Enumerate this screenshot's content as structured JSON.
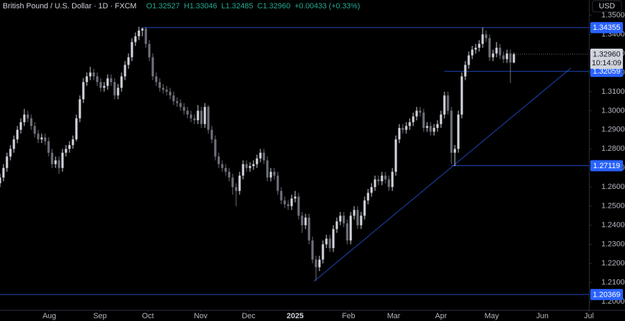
{
  "chart_data": {
    "type": "candlestick",
    "title": "British Pound / U.S. Dollar · 1D · FXCM",
    "readout": [
      "O1.32527",
      "H1.33046",
      "L1.32485",
      "C1.32960",
      "+0.00433 (+0.33%)"
    ],
    "currency": "USD",
    "ohlc": [
      [
        1.262,
        1.267,
        1.26,
        1.265
      ],
      [
        1.265,
        1.272,
        1.263,
        1.27
      ],
      [
        1.27,
        1.278,
        1.268,
        1.276
      ],
      [
        1.276,
        1.282,
        1.274,
        1.28
      ],
      [
        1.28,
        1.287,
        1.278,
        1.285
      ],
      [
        1.285,
        1.292,
        1.283,
        1.29
      ],
      [
        1.29,
        1.296,
        1.288,
        1.294
      ],
      [
        1.294,
        1.301,
        1.292,
        1.298
      ],
      [
        1.298,
        1.3,
        1.294,
        1.296
      ],
      [
        1.296,
        1.298,
        1.29,
        1.292
      ],
      [
        1.292,
        1.294,
        1.286,
        1.288
      ],
      [
        1.288,
        1.29,
        1.283,
        1.285
      ],
      [
        1.285,
        1.288,
        1.283,
        1.286
      ],
      [
        1.286,
        1.288,
        1.282,
        1.284
      ],
      [
        1.284,
        1.286,
        1.276,
        1.278
      ],
      [
        1.278,
        1.28,
        1.27,
        1.272
      ],
      [
        1.272,
        1.276,
        1.27,
        1.274
      ],
      [
        1.274,
        1.276,
        1.267,
        1.27
      ],
      [
        1.27,
        1.28,
        1.268,
        1.278
      ],
      [
        1.278,
        1.282,
        1.276,
        1.28
      ],
      [
        1.28,
        1.284,
        1.278,
        1.282
      ],
      [
        1.282,
        1.287,
        1.28,
        1.285
      ],
      [
        1.285,
        1.298,
        1.284,
        1.296
      ],
      [
        1.296,
        1.308,
        1.294,
        1.306
      ],
      [
        1.306,
        1.317,
        1.304,
        1.315
      ],
      [
        1.315,
        1.32,
        1.313,
        1.318
      ],
      [
        1.318,
        1.323,
        1.316,
        1.32
      ],
      [
        1.32,
        1.322,
        1.316,
        1.318
      ],
      [
        1.318,
        1.32,
        1.313,
        1.315
      ],
      [
        1.315,
        1.317,
        1.31,
        1.312
      ],
      [
        1.312,
        1.315,
        1.31,
        1.313
      ],
      [
        1.313,
        1.319,
        1.311,
        1.317
      ],
      [
        1.317,
        1.319,
        1.313,
        1.315
      ],
      [
        1.315,
        1.317,
        1.306,
        1.308
      ],
      [
        1.308,
        1.314,
        1.306,
        1.312
      ],
      [
        1.312,
        1.32,
        1.31,
        1.318
      ],
      [
        1.318,
        1.326,
        1.316,
        1.324
      ],
      [
        1.324,
        1.33,
        1.322,
        1.328
      ],
      [
        1.328,
        1.338,
        1.326,
        1.336
      ],
      [
        1.336,
        1.341,
        1.334,
        1.339
      ],
      [
        1.339,
        1.344,
        1.337,
        1.342
      ],
      [
        1.342,
        1.3436,
        1.339,
        1.343
      ],
      [
        1.343,
        1.344,
        1.333,
        1.335
      ],
      [
        1.335,
        1.337,
        1.326,
        1.328
      ],
      [
        1.328,
        1.33,
        1.316,
        1.318
      ],
      [
        1.318,
        1.32,
        1.313,
        1.315
      ],
      [
        1.315,
        1.317,
        1.31,
        1.312
      ],
      [
        1.312,
        1.314,
        1.309,
        1.311
      ],
      [
        1.311,
        1.313,
        1.308,
        1.31
      ],
      [
        1.31,
        1.312,
        1.306,
        1.308
      ],
      [
        1.308,
        1.31,
        1.303,
        1.305
      ],
      [
        1.305,
        1.307,
        1.302,
        1.304
      ],
      [
        1.304,
        1.306,
        1.3,
        1.302
      ],
      [
        1.302,
        1.304,
        1.298,
        1.3
      ],
      [
        1.3,
        1.302,
        1.296,
        1.298
      ],
      [
        1.298,
        1.3,
        1.294,
        1.296
      ],
      [
        1.296,
        1.298,
        1.293,
        1.295
      ],
      [
        1.295,
        1.303,
        1.293,
        1.3
      ],
      [
        1.3,
        1.302,
        1.291,
        1.293
      ],
      [
        1.293,
        1.304,
        1.291,
        1.302
      ],
      [
        1.302,
        1.303,
        1.288,
        1.29
      ],
      [
        1.29,
        1.292,
        1.283,
        1.285
      ],
      [
        1.285,
        1.287,
        1.274,
        1.276
      ],
      [
        1.276,
        1.278,
        1.27,
        1.272
      ],
      [
        1.272,
        1.274,
        1.268,
        1.27
      ],
      [
        1.27,
        1.272,
        1.266,
        1.268
      ],
      [
        1.268,
        1.27,
        1.263,
        1.265
      ],
      [
        1.265,
        1.267,
        1.256,
        1.26
      ],
      [
        1.26,
        1.262,
        1.25,
        1.258
      ],
      [
        1.258,
        1.268,
        1.256,
        1.266
      ],
      [
        1.266,
        1.274,
        1.264,
        1.272
      ],
      [
        1.272,
        1.274,
        1.268,
        1.27
      ],
      [
        1.27,
        1.273,
        1.268,
        1.271
      ],
      [
        1.271,
        1.274,
        1.269,
        1.272
      ],
      [
        1.272,
        1.277,
        1.27,
        1.275
      ],
      [
        1.275,
        1.28,
        1.273,
        1.278
      ],
      [
        1.278,
        1.28,
        1.272,
        1.274
      ],
      [
        1.274,
        1.276,
        1.263,
        1.265
      ],
      [
        1.265,
        1.27,
        1.263,
        1.268
      ],
      [
        1.268,
        1.27,
        1.264,
        1.266
      ],
      [
        1.266,
        1.268,
        1.256,
        1.258
      ],
      [
        1.258,
        1.26,
        1.251,
        1.253
      ],
      [
        1.253,
        1.255,
        1.249,
        1.251
      ],
      [
        1.251,
        1.253,
        1.248,
        1.25
      ],
      [
        1.25,
        1.256,
        1.248,
        1.254
      ],
      [
        1.254,
        1.258,
        1.252,
        1.255
      ],
      [
        1.255,
        1.257,
        1.243,
        1.245
      ],
      [
        1.245,
        1.247,
        1.236,
        1.24
      ],
      [
        1.24,
        1.246,
        1.238,
        1.244
      ],
      [
        1.244,
        1.246,
        1.23,
        1.232
      ],
      [
        1.232,
        1.234,
        1.22,
        1.222
      ],
      [
        1.222,
        1.224,
        1.211,
        1.218
      ],
      [
        1.218,
        1.224,
        1.216,
        1.222
      ],
      [
        1.222,
        1.232,
        1.22,
        1.23
      ],
      [
        1.23,
        1.235,
        1.228,
        1.233
      ],
      [
        1.233,
        1.235,
        1.226,
        1.228
      ],
      [
        1.228,
        1.24,
        1.226,
        1.238
      ],
      [
        1.238,
        1.244,
        1.236,
        1.242
      ],
      [
        1.242,
        1.247,
        1.24,
        1.245
      ],
      [
        1.245,
        1.247,
        1.239,
        1.241
      ],
      [
        1.241,
        1.243,
        1.23,
        1.232
      ],
      [
        1.232,
        1.247,
        1.23,
        1.245
      ],
      [
        1.245,
        1.25,
        1.243,
        1.248
      ],
      [
        1.248,
        1.25,
        1.238,
        1.24
      ],
      [
        1.24,
        1.247,
        1.238,
        1.245
      ],
      [
        1.245,
        1.255,
        1.243,
        1.253
      ],
      [
        1.253,
        1.259,
        1.251,
        1.257
      ],
      [
        1.257,
        1.262,
        1.255,
        1.26
      ],
      [
        1.26,
        1.266,
        1.258,
        1.264
      ],
      [
        1.264,
        1.266,
        1.261,
        1.263
      ],
      [
        1.263,
        1.268,
        1.261,
        1.266
      ],
      [
        1.266,
        1.268,
        1.262,
        1.264
      ],
      [
        1.264,
        1.266,
        1.258,
        1.26
      ],
      [
        1.26,
        1.27,
        1.258,
        1.268
      ],
      [
        1.268,
        1.287,
        1.266,
        1.285
      ],
      [
        1.285,
        1.293,
        1.283,
        1.291
      ],
      [
        1.291,
        1.293,
        1.288,
        1.29
      ],
      [
        1.29,
        1.294,
        1.288,
        1.292
      ],
      [
        1.292,
        1.296,
        1.29,
        1.294
      ],
      [
        1.294,
        1.299,
        1.292,
        1.297
      ],
      [
        1.297,
        1.302,
        1.295,
        1.3
      ],
      [
        1.3,
        1.302,
        1.297,
        1.299
      ],
      [
        1.299,
        1.301,
        1.289,
        1.291
      ],
      [
        1.291,
        1.294,
        1.289,
        1.292
      ],
      [
        1.292,
        1.294,
        1.287,
        1.289
      ],
      [
        1.289,
        1.293,
        1.287,
        1.291
      ],
      [
        1.291,
        1.295,
        1.289,
        1.293
      ],
      [
        1.293,
        1.3,
        1.291,
        1.298
      ],
      [
        1.298,
        1.31,
        1.296,
        1.308
      ],
      [
        1.308,
        1.31,
        1.298,
        1.3
      ],
      [
        1.3,
        1.302,
        1.272,
        1.278
      ],
      [
        1.278,
        1.282,
        1.271,
        1.28
      ],
      [
        1.28,
        1.3,
        1.278,
        1.298
      ],
      [
        1.298,
        1.32,
        1.296,
        1.318
      ],
      [
        1.318,
        1.326,
        1.316,
        1.324
      ],
      [
        1.324,
        1.331,
        1.322,
        1.329
      ],
      [
        1.329,
        1.334,
        1.327,
        1.332
      ],
      [
        1.332,
        1.335,
        1.33,
        1.333
      ],
      [
        1.333,
        1.337,
        1.331,
        1.335
      ],
      [
        1.335,
        1.3436,
        1.333,
        1.34
      ],
      [
        1.34,
        1.342,
        1.336,
        1.338
      ],
      [
        1.338,
        1.34,
        1.326,
        1.328
      ],
      [
        1.328,
        1.332,
        1.326,
        1.33
      ],
      [
        1.33,
        1.336,
        1.328,
        1.333
      ],
      [
        1.333,
        1.335,
        1.327,
        1.329
      ],
      [
        1.329,
        1.331,
        1.325,
        1.327
      ],
      [
        1.327,
        1.332,
        1.325,
        1.33
      ],
      [
        1.33,
        1.332,
        1.3145,
        1.32527
      ],
      [
        1.32527,
        1.33046,
        1.32485,
        1.3296
      ]
    ],
    "xlim": [
      0,
      169.6
    ],
    "xticks": [
      {
        "value": 14.2,
        "label": "Aug"
      },
      {
        "value": 28.8,
        "label": "Sep"
      },
      {
        "value": 42.6,
        "label": "Oct"
      },
      {
        "value": 57.8,
        "label": "Nov"
      },
      {
        "value": 71.6,
        "label": "Dec"
      },
      {
        "value": 85,
        "label": "2025"
      },
      {
        "value": 100.4,
        "label": "Feb"
      },
      {
        "value": 113.4,
        "label": "Mar"
      },
      {
        "value": 127,
        "label": "Apr"
      },
      {
        "value": 141.6,
        "label": "May"
      },
      {
        "value": 156.2,
        "label": "Jun"
      },
      {
        "value": 169.6,
        "label": "Jul"
      }
    ],
    "ylim": [
      1.19565,
      1.35801
    ],
    "yticks": [
      {
        "value": 1.35,
        "label": "1.35000"
      },
      {
        "value": 1.34,
        "label": "1.34000"
      },
      {
        "value": 1.33,
        "label": "1.33000"
      },
      {
        "value": 1.32,
        "label": "1.32000"
      },
      {
        "value": 1.31,
        "label": "1.31000"
      },
      {
        "value": 1.3,
        "label": "1.30000"
      },
      {
        "value": 1.29,
        "label": "1.29000"
      },
      {
        "value": 1.28,
        "label": "1.28000"
      },
      {
        "value": 1.27,
        "label": "1.27000"
      },
      {
        "value": 1.26,
        "label": "1.26000"
      },
      {
        "value": 1.25,
        "label": "1.25000"
      },
      {
        "value": 1.24,
        "label": "1.24000"
      },
      {
        "value": 1.23,
        "label": "1.23000"
      },
      {
        "value": 1.22,
        "label": "1.22000"
      },
      {
        "value": 1.21,
        "label": "1.21000"
      },
      {
        "value": 1.2,
        "label": "1.20000"
      }
    ],
    "up_color": "#d1d4dc",
    "down_color": "#6f727c",
    "level_color": "#2962ff",
    "levels": [
      {
        "value": 1.34355,
        "anchor": 41
      },
      {
        "value": 1.32059,
        "anchor": 128
      },
      {
        "value": 1.27119,
        "anchor": 130
      },
      {
        "value": 1.20369,
        "anchor": 0
      }
    ],
    "trendline": [
      [
        90.4,
        1.21058
      ],
      [
        164.4,
        1.32233
      ]
    ],
    "last_price": {
      "value": 1.3296,
      "label": "1.32960",
      "countdown": "10:14:09"
    }
  }
}
